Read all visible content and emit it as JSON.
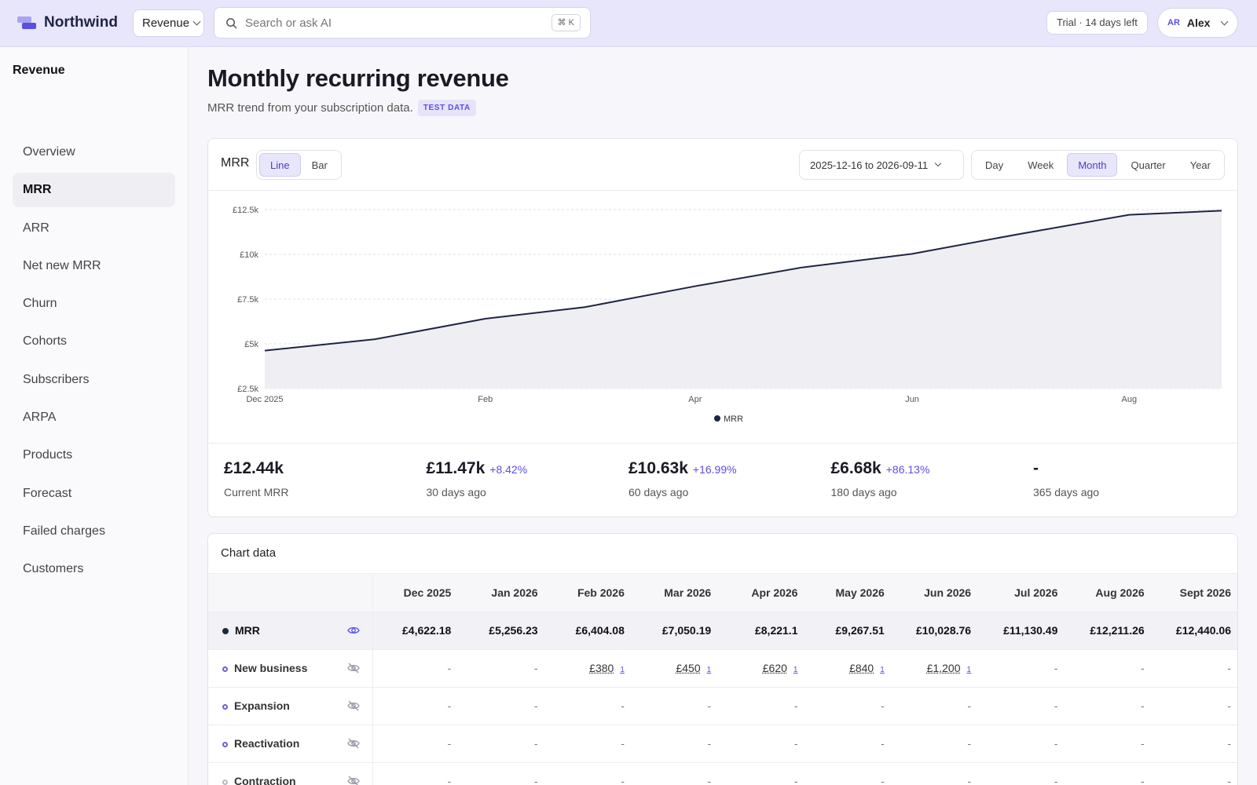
{
  "brand": {
    "name": "Northwind",
    "accent": "#5b4fe0"
  },
  "topbar": {
    "workspace": "Revenue",
    "search_placeholder": "Search or ask AI",
    "shortcut": "⌘ K",
    "trial": "Trial · 14 days left",
    "user_initials": "AR",
    "user_name": "Alex"
  },
  "sidebar": {
    "title": "Revenue",
    "items": [
      {
        "label": "Overview"
      },
      {
        "label": "MRR",
        "active": true
      },
      {
        "label": "ARR"
      },
      {
        "label": "Net new MRR"
      },
      {
        "label": "Churn"
      },
      {
        "label": "Cohorts"
      },
      {
        "label": "Subscribers"
      },
      {
        "label": "ARPA"
      },
      {
        "label": "Products"
      },
      {
        "label": "Forecast"
      },
      {
        "label": "Failed charges"
      },
      {
        "label": "Customers"
      }
    ]
  },
  "page": {
    "title": "Monthly recurring revenue",
    "subtitle": "MRR trend from your subscription data.",
    "badge": "TEST DATA"
  },
  "chart_card": {
    "label": "MRR",
    "chart_types": [
      "Line",
      "Bar"
    ],
    "chart_type_selected": "Line",
    "date_range": "2025-12-16 to 2026-09-11",
    "granularities": [
      "Day",
      "Week",
      "Month",
      "Quarter",
      "Year"
    ],
    "granularity_selected": "Month"
  },
  "chart_data": {
    "type": "area",
    "series": [
      {
        "name": "MRR",
        "x": [
          "2025-12-16",
          "2026-01-16",
          "2026-02-16",
          "2026-03-16",
          "2026-04-16",
          "2026-05-16",
          "2026-06-16",
          "2026-07-16",
          "2026-08-16",
          "2026-09-11"
        ],
        "values": [
          4622.18,
          5256.23,
          6404.08,
          7050.19,
          8221.1,
          9267.51,
          10028.76,
          11130.49,
          12211.26,
          12440.06
        ]
      }
    ],
    "xticks": [
      {
        "date": "2025-12-16",
        "label": "Dec 2025"
      },
      {
        "date": "2026-02-16",
        "label": "Feb"
      },
      {
        "date": "2026-04-16",
        "label": "Apr"
      },
      {
        "date": "2026-06-16",
        "label": "Jun"
      },
      {
        "date": "2026-08-16",
        "label": "Aug"
      }
    ],
    "yticks": [
      {
        "value": 2500,
        "label": "£2.5k"
      },
      {
        "value": 5000,
        "label": "£5k"
      },
      {
        "value": 7500,
        "label": "£7.5k"
      },
      {
        "value": 10000,
        "label": "£10k"
      },
      {
        "value": 12500,
        "label": "£12.5k"
      }
    ],
    "ylim": [
      2500,
      12500
    ],
    "legend": "bottom-center",
    "line_color": "#1f2444",
    "fill_color": "#efeff3"
  },
  "kpis": [
    {
      "value": "£12.44k",
      "change": "",
      "label": "Current MRR"
    },
    {
      "value": "£11.47k",
      "change": "+8.42%",
      "label": "30 days ago"
    },
    {
      "value": "£10.63k",
      "change": "+16.99%",
      "label": "60 days ago"
    },
    {
      "value": "£6.68k",
      "change": "+86.13%",
      "label": "180 days ago"
    },
    {
      "value": "-",
      "change": "",
      "label": "365 days ago"
    }
  ],
  "table": {
    "title": "Chart data",
    "columns": [
      "Dec 2025",
      "Jan 2026",
      "Feb 2026",
      "Mar 2026",
      "Apr 2026",
      "May 2026",
      "Jun 2026",
      "Jul 2026",
      "Aug 2026",
      "Sept 2026"
    ],
    "rows": [
      {
        "label": "MRR",
        "style": "fill",
        "eye": "eye-icon",
        "cells": [
          "£4,622.18",
          "£5,256.23",
          "£6,404.08",
          "£7,050.19",
          "£8,221.1",
          "£9,267.51",
          "£10,028.76",
          "£11,130.49",
          "£12,211.26",
          "£12,440.06"
        ]
      },
      {
        "label": "New business",
        "style": "ring",
        "eye": "eye-off-icon",
        "cells": [
          "-",
          "-",
          "£380",
          "£450",
          "£620",
          "£840",
          "£1,200",
          "-",
          "-",
          "-"
        ],
        "counts": [
          "",
          "",
          "1",
          "1",
          "1",
          "1",
          "1",
          "",
          "",
          ""
        ]
      },
      {
        "label": "Expansion",
        "style": "ring",
        "eye": "eye-off-icon",
        "cells": [
          "-",
          "-",
          "-",
          "-",
          "-",
          "-",
          "-",
          "-",
          "-",
          "-"
        ]
      },
      {
        "label": "Reactivation",
        "style": "ring",
        "eye": "eye-off-icon",
        "cells": [
          "-",
          "-",
          "-",
          "-",
          "-",
          "-",
          "-",
          "-",
          "-",
          "-"
        ]
      },
      {
        "label": "Contraction",
        "style": "ring-g",
        "eye": "eye-off-icon",
        "cells": [
          "-",
          "-",
          "-",
          "-",
          "-",
          "-",
          "-",
          "-",
          "-",
          "-"
        ]
      }
    ]
  }
}
